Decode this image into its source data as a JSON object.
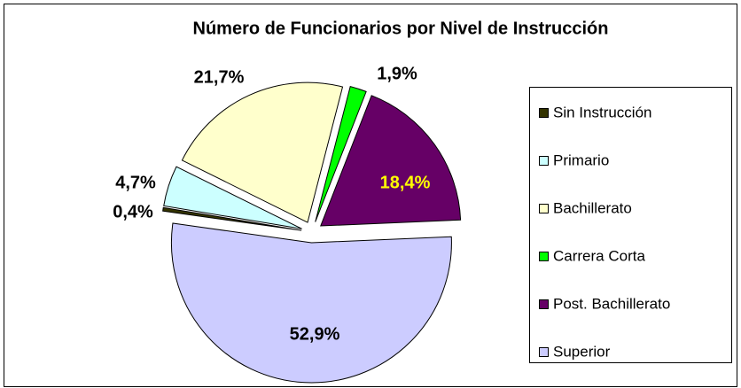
{
  "chart_data": {
    "type": "pie",
    "title": "Número de Funcionarios por Nivel de Instrucción",
    "categories": [
      "Sin Instrucción",
      "Primario",
      "Bachillerato",
      "Carrera Corta",
      "Post. Bachillerato",
      "Superior"
    ],
    "values": [
      0.4,
      4.7,
      21.7,
      1.9,
      18.4,
      52.9
    ],
    "value_labels": [
      "0,4%",
      "4,7%",
      "21,7%",
      "1,9%",
      "18,4%",
      "52,9%"
    ],
    "colors": [
      "#333300",
      "#ccffff",
      "#ffffcc",
      "#00ff00",
      "#660066",
      "#ccccff"
    ],
    "legend": "right"
  }
}
